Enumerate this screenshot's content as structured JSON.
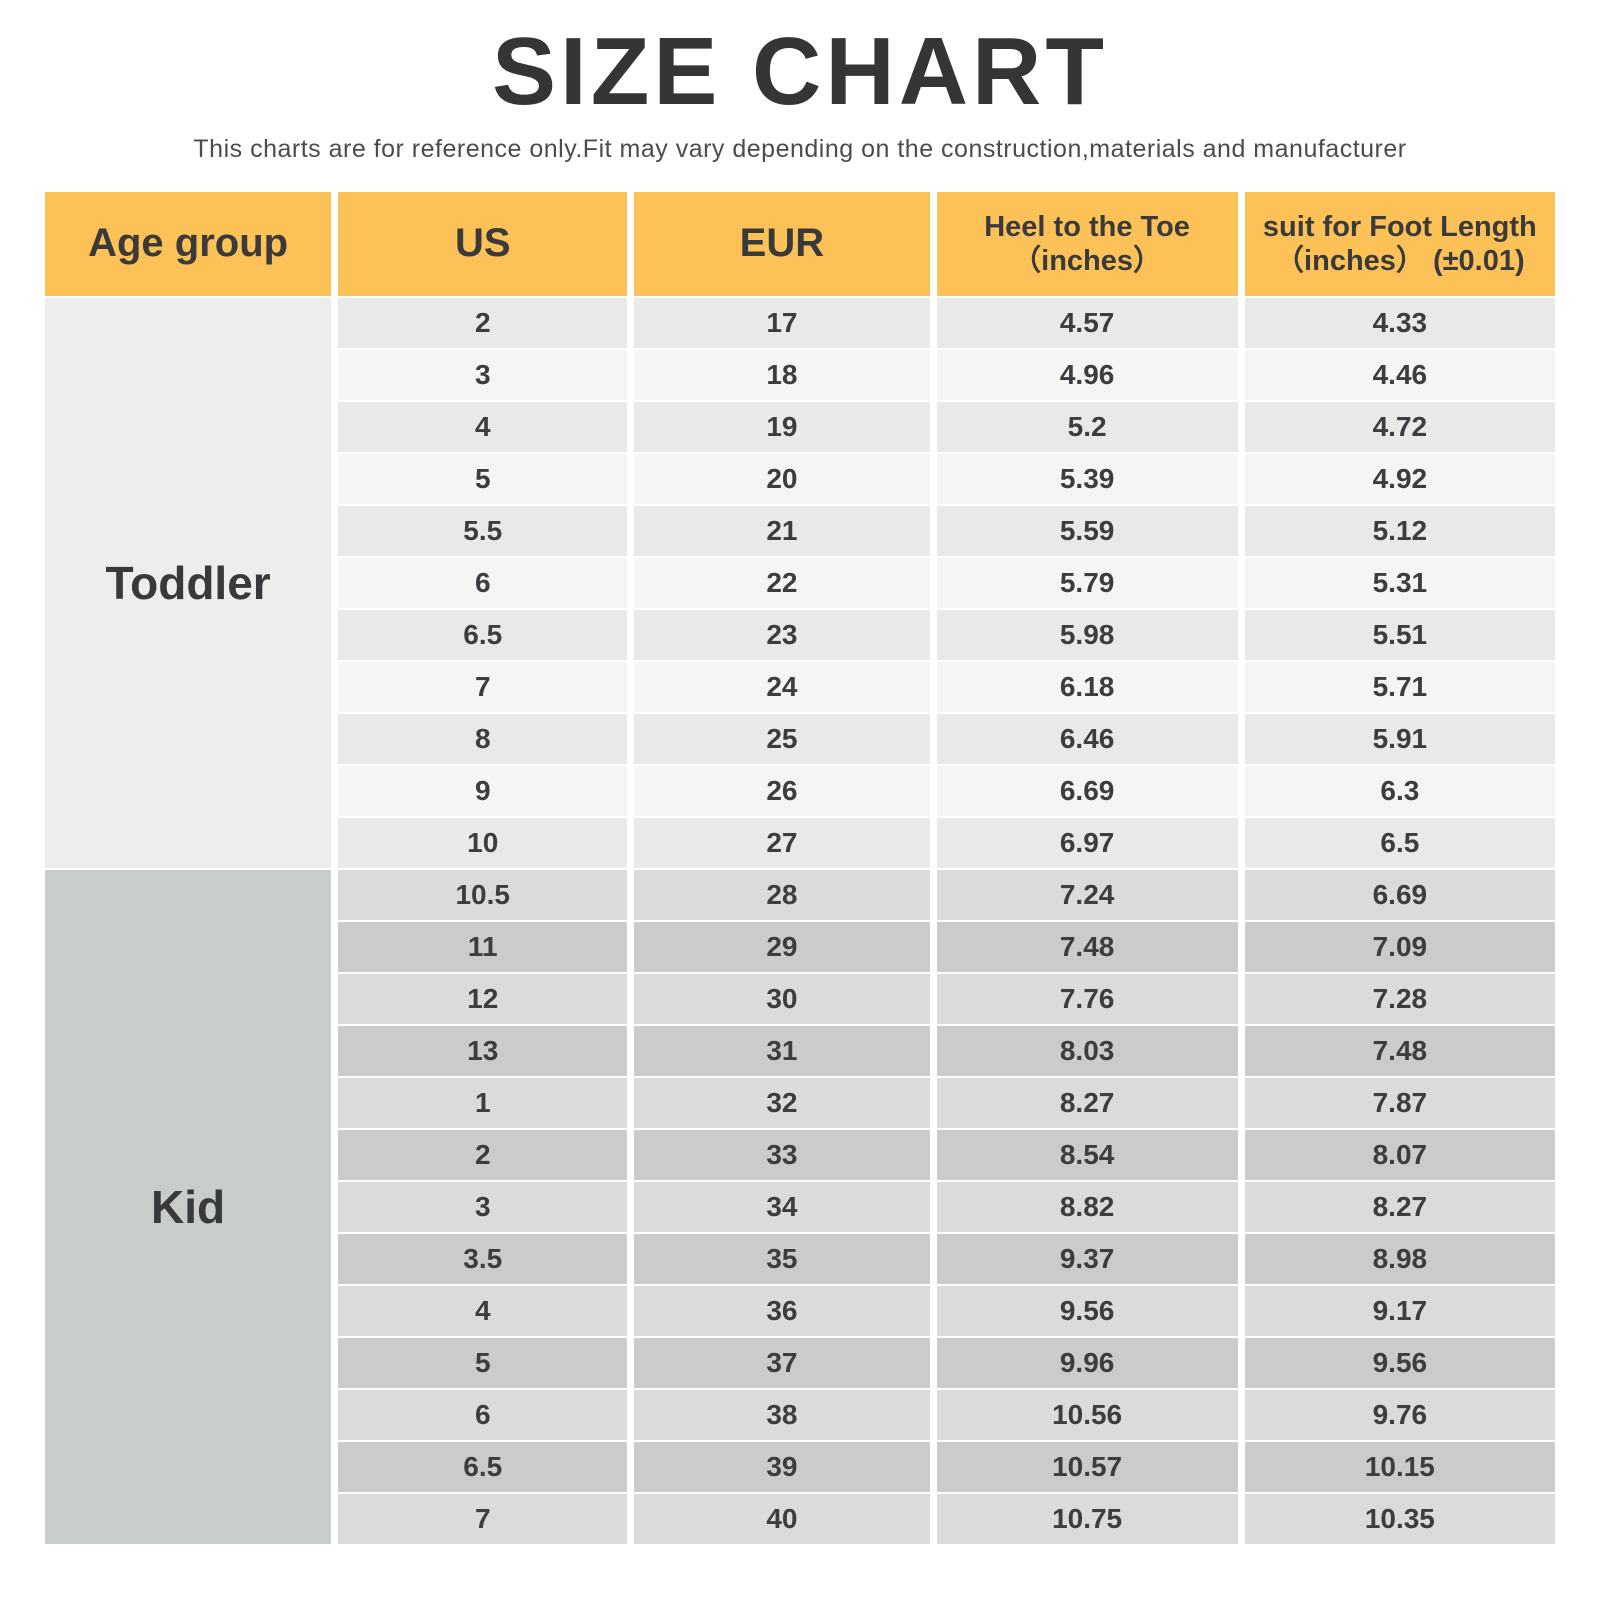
{
  "page": {
    "title": "SIZE CHART",
    "subtitle": "This charts are for reference only.Fit may vary depending on the construction,materials and manufacturer"
  },
  "table": {
    "header": {
      "age_group": "Age group",
      "us": "US",
      "eur": "EUR",
      "heel_line1": "Heel to the Toe",
      "heel_line2": "（inches）",
      "foot_line1": "suit for Foot Length",
      "foot_line2": "（inches） (±0.01)"
    }
  },
  "colors": {
    "header_bg": "#FCC258",
    "header_text": "#3A3A3A",
    "cell_text": "#3B3D3F",
    "toddler_group_bg": "#EDEDEC",
    "toddler_row_odd": "#E9E9E8",
    "toddler_row_even": "#F5F5F4",
    "kid_group_bg": "#C9CDCA",
    "kid_row_odd": "#DADCDB",
    "kid_row_even": "#C9CCCB"
  },
  "chart_data": {
    "type": "table",
    "title": "SIZE CHART",
    "columns": [
      "Age group",
      "US",
      "EUR",
      "Heel to the Toe (inches)",
      "suit for Foot Length (inches) (±0.01)"
    ],
    "groups": [
      {
        "key": "toddler",
        "label": "Toddler",
        "rows": [
          [
            "2",
            "17",
            "4.57",
            "4.33"
          ],
          [
            "3",
            "18",
            "4.96",
            "4.46"
          ],
          [
            "4",
            "19",
            "5.2",
            "4.72"
          ],
          [
            "5",
            "20",
            "5.39",
            "4.92"
          ],
          [
            "5.5",
            "21",
            "5.59",
            "5.12"
          ],
          [
            "6",
            "22",
            "5.79",
            "5.31"
          ],
          [
            "6.5",
            "23",
            "5.98",
            "5.51"
          ],
          [
            "7",
            "24",
            "6.18",
            "5.71"
          ],
          [
            "8",
            "25",
            "6.46",
            "5.91"
          ],
          [
            "9",
            "26",
            "6.69",
            "6.3"
          ],
          [
            "10",
            "27",
            "6.97",
            "6.5"
          ]
        ]
      },
      {
        "key": "kid",
        "label": "Kid",
        "rows": [
          [
            "10.5",
            "28",
            "7.24",
            "6.69"
          ],
          [
            "11",
            "29",
            "7.48",
            "7.09"
          ],
          [
            "12",
            "30",
            "7.76",
            "7.28"
          ],
          [
            "13",
            "31",
            "8.03",
            "7.48"
          ],
          [
            "1",
            "32",
            "8.27",
            "7.87"
          ],
          [
            "2",
            "33",
            "8.54",
            "8.07"
          ],
          [
            "3",
            "34",
            "8.82",
            "8.27"
          ],
          [
            "3.5",
            "35",
            "9.37",
            "8.98"
          ],
          [
            "4",
            "36",
            "9.56",
            "9.17"
          ],
          [
            "5",
            "37",
            "9.96",
            "9.56"
          ],
          [
            "6",
            "38",
            "10.56",
            "9.76"
          ],
          [
            "6.5",
            "39",
            "10.57",
            "10.15"
          ],
          [
            "7",
            "40",
            "10.75",
            "10.35"
          ]
        ]
      }
    ]
  }
}
